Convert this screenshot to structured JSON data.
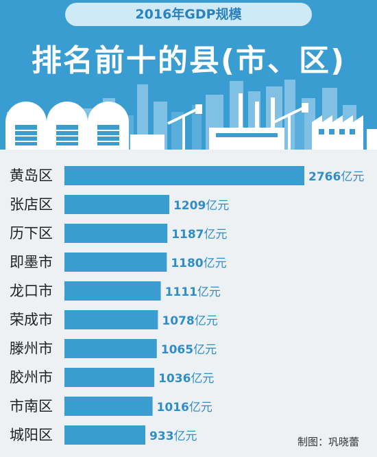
{
  "header": {
    "subtitle": "2016年GDP规模",
    "title": "排名前十的县(市、区)"
  },
  "credit": "制图：巩晓蕾",
  "colors": {
    "accent": "#3a9dd2",
    "bar": "#3a9dd2",
    "value_text": "#2f8ec9"
  },
  "chart_data": {
    "type": "bar",
    "orientation": "horizontal",
    "categories": [
      "黄岛区",
      "张店区",
      "历下区",
      "即墨市",
      "龙口市",
      "荣成市",
      "滕州市",
      "胶州市",
      "市南区",
      "城阳区"
    ],
    "values": [
      2766,
      1209,
      1187,
      1180,
      1111,
      1078,
      1065,
      1036,
      1016,
      933
    ],
    "unit": "亿元",
    "title": "",
    "xlabel": "",
    "ylabel": ""
  }
}
